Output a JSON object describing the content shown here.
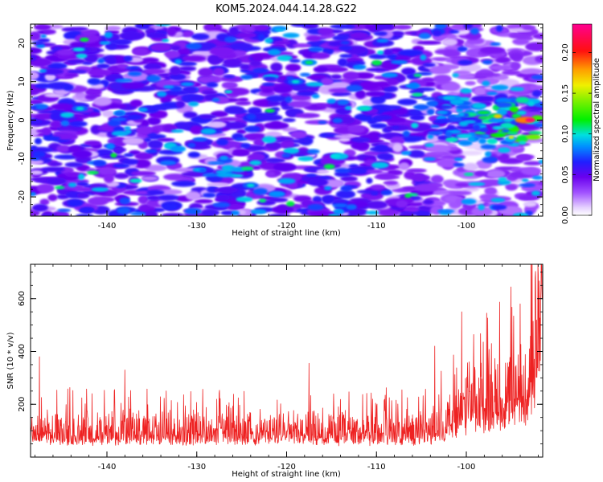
{
  "figure_title": "KOM5.2024.044.14.28.G22",
  "chart_data": [
    {
      "type": "heatmap",
      "title": "",
      "xlabel": "Height of straight line (km)",
      "ylabel": "Frequency (Hz)",
      "xlim": [
        -148.5,
        -91.5
      ],
      "ylim": [
        -25,
        25
      ],
      "xticks": [
        -140,
        -130,
        -120,
        -110,
        -100
      ],
      "yticks": [
        -20,
        -10,
        0,
        10,
        20
      ],
      "colorbar": {
        "label": "Normalized spectral amplitude",
        "range": [
          0,
          0.235
        ],
        "ticks": [
          "0.00",
          "0.05",
          "0.10",
          "0.15",
          "0.20"
        ],
        "colormap": "white-purple-blue-cyan-green-yellow-red-magenta"
      },
      "features": [
        {
          "description_x_range": [
            -104,
            -91.5
          ],
          "frequency": 0,
          "value": 0.23
        },
        {
          "x": -117.5,
          "frequency": 15,
          "value": 0.11
        },
        {
          "x": -119,
          "frequency": 10,
          "value": 0.1
        },
        {
          "x": -143,
          "frequency": 3,
          "value": 0.1
        },
        {
          "x": -124,
          "frequency": -17,
          "value": 0.1
        }
      ]
    },
    {
      "type": "line",
      "title": "",
      "xlabel": "Height of straight line (km)",
      "ylabel": "SNR (10 * v/v)",
      "xlim": [
        -148.5,
        -91.5
      ],
      "ylim": [
        0,
        730
      ],
      "xticks": [
        -140,
        -130,
        -120,
        -110,
        -100
      ],
      "yticks": [
        200,
        400,
        600
      ],
      "series": [
        {
          "color": "#ee2222",
          "baseline": 110,
          "noise_amplitude": 80,
          "envelope": [
            {
              "x": -148.5,
              "y": 120
            },
            {
              "x": -104,
              "y": 120
            },
            {
              "x": -100,
              "y": 220
            },
            {
              "x": -96,
              "y": 280
            },
            {
              "x": -93,
              "y": 350
            },
            {
              "x": -91.5,
              "y": 720
            }
          ],
          "notable_peaks": [
            {
              "x": -147.5,
              "y": 380
            },
            {
              "x": -138,
              "y": 330
            },
            {
              "x": -117.5,
              "y": 355
            },
            {
              "x": -103.5,
              "y": 420
            },
            {
              "x": -100.5,
              "y": 550
            },
            {
              "x": -94,
              "y": 580
            },
            {
              "x": -93,
              "y": 410
            },
            {
              "x": -92,
              "y": 690
            },
            {
              "x": -91.6,
              "y": 720
            }
          ]
        }
      ]
    }
  ]
}
